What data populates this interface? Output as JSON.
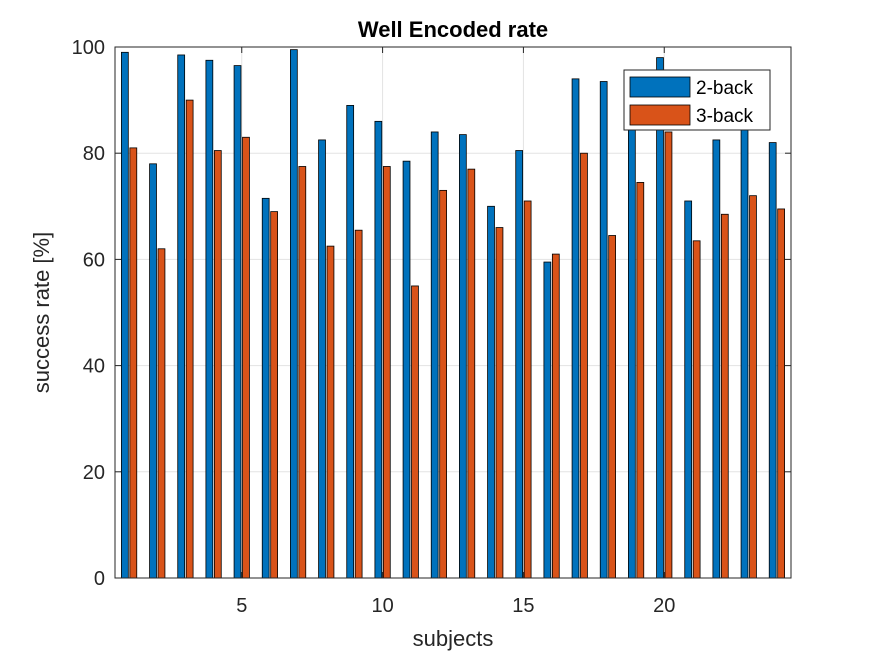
{
  "chart_data": {
    "type": "bar",
    "title": "Well Encoded rate",
    "xlabel": "subjects",
    "ylabel": "success rate [%]",
    "categories": [
      1,
      2,
      3,
      4,
      5,
      6,
      7,
      8,
      9,
      10,
      11,
      12,
      13,
      14,
      15,
      16,
      17,
      18,
      19,
      20,
      21,
      22,
      23,
      24
    ],
    "xticks": [
      5,
      10,
      15,
      20
    ],
    "yticks": [
      0,
      20,
      40,
      60,
      80,
      100
    ],
    "xlim": [
      0.5,
      24.5
    ],
    "ylim": [
      0,
      100
    ],
    "grid": true,
    "legend_position": "top-right",
    "series": [
      {
        "name": "2-back",
        "color": "#0072BD",
        "values": [
          99,
          78,
          98.5,
          97.5,
          96.5,
          71.5,
          99.5,
          82.5,
          89,
          86,
          78.5,
          84,
          83.5,
          70,
          80.5,
          59.5,
          94,
          93.5,
          84.5,
          98,
          71,
          82.5,
          84.5,
          82
        ]
      },
      {
        "name": "3-back",
        "color": "#D95319",
        "values": [
          81,
          62,
          90,
          80.5,
          83,
          69,
          77.5,
          62.5,
          65.5,
          77.5,
          55,
          73,
          77,
          66,
          71,
          61,
          80,
          64.5,
          74.5,
          84,
          63.5,
          68.5,
          72,
          69.5
        ]
      }
    ]
  }
}
